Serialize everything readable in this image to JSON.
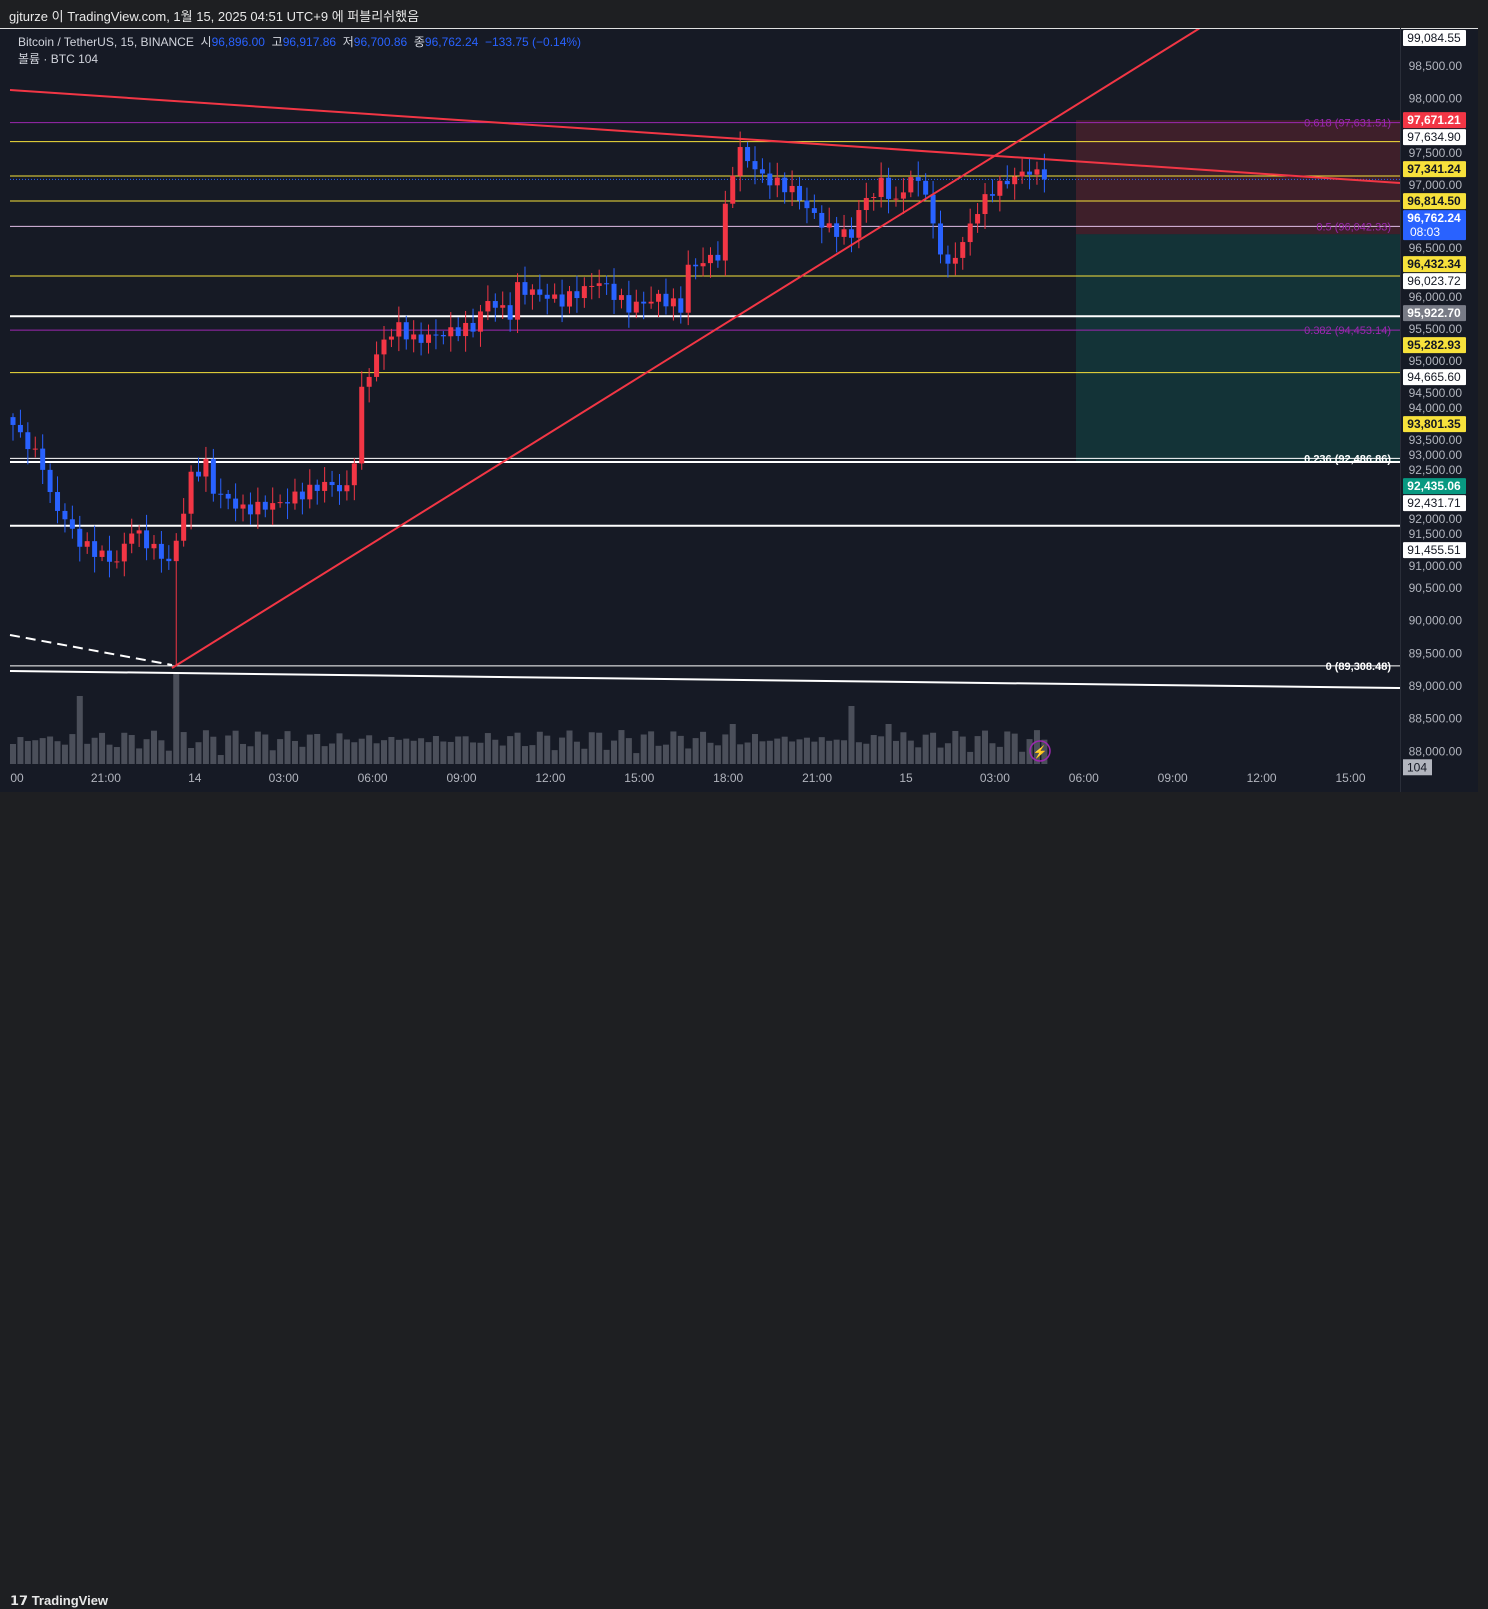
{
  "publish_line": "gjturze 이 TradingView.com, 1월 15, 2025 04:51 UTC+9 에 퍼블리쉬했음",
  "legend": {
    "symbol": "Bitcoin / TetherUS, 15, BINANCE",
    "open_label": "시",
    "open": "96,896.00",
    "high_label": "고",
    "high": "96,917.86",
    "low_label": "저",
    "low": "96,700.86",
    "close_label": "종",
    "close": "96,762.24",
    "change": "−133.75 (−0.14%)",
    "volume_line": "볼륨 · BTC  104"
  },
  "footer": {
    "brand": "TradingView"
  },
  "colors": {
    "up": "#f23645",
    "down": "#2962ff",
    "bg": "#161a25",
    "fib": "#9c27b0",
    "hline_yellow": "#f7e13b",
    "trend": "#f23645"
  },
  "chart_data": {
    "type": "candlestick",
    "title": "Bitcoin / TetherUS, 15, BINANCE",
    "ylim": [
      88000,
      99300
    ],
    "y_ticks": [
      "98,500.00",
      "98,000.00",
      "97,500.00",
      "97,000.00",
      "96,500.00",
      "96,000.00",
      "95,500.00",
      "95,000.00",
      "94,500.00",
      "94,000.00",
      "93,500.00",
      "93,000.00",
      "92,500.00",
      "92,000.00",
      "91,500.00",
      "91,000.00",
      "90,500.00",
      "90,000.00",
      "89,500.00",
      "89,000.00",
      "88,500.00",
      "88,000.00"
    ],
    "x_ticks": [
      "00",
      "21:00",
      "14",
      "03:00",
      "06:00",
      "09:00",
      "12:00",
      "15:00",
      "18:00",
      "21:00",
      "15",
      "03:00",
      "06:00",
      "09:00",
      "12:00",
      "15:00"
    ],
    "close_keypoints": [
      [
        0,
        93000
      ],
      [
        4,
        92400
      ],
      [
        5,
        91900
      ],
      [
        9,
        91200
      ],
      [
        12,
        91000
      ],
      [
        14,
        90900
      ],
      [
        16,
        91400
      ],
      [
        19,
        91100
      ],
      [
        21,
        90900
      ],
      [
        22,
        91200
      ],
      [
        23,
        91700
      ],
      [
        24,
        92200
      ],
      [
        26,
        92400
      ],
      [
        27,
        92000
      ],
      [
        31,
        91700
      ],
      [
        36,
        91800
      ],
      [
        42,
        92100
      ],
      [
        45,
        92000
      ],
      [
        46,
        92500
      ],
      [
        47,
        93500
      ],
      [
        48,
        93800
      ],
      [
        50,
        94300
      ],
      [
        52,
        94500
      ],
      [
        54,
        94300
      ],
      [
        58,
        94400
      ],
      [
        62,
        94500
      ],
      [
        64,
        94900
      ],
      [
        67,
        94700
      ],
      [
        68,
        95100
      ],
      [
        74,
        94900
      ],
      [
        79,
        95200
      ],
      [
        81,
        95000
      ],
      [
        83,
        94800
      ],
      [
        87,
        94950
      ],
      [
        90,
        94800
      ],
      [
        91,
        95400
      ],
      [
        95,
        95600
      ],
      [
        96,
        96300
      ],
      [
        97,
        96900
      ],
      [
        98,
        97200
      ],
      [
        101,
        96800
      ],
      [
        105,
        96600
      ],
      [
        108,
        96200
      ],
      [
        110,
        96000
      ],
      [
        113,
        95900
      ],
      [
        114,
        96300
      ],
      [
        117,
        96700
      ],
      [
        119,
        96400
      ],
      [
        121,
        96800
      ],
      [
        123,
        96600
      ],
      [
        124,
        96000
      ],
      [
        126,
        95400
      ],
      [
        128,
        95800
      ],
      [
        130,
        96300
      ],
      [
        132,
        96600
      ],
      [
        135,
        96800
      ],
      [
        137,
        96900
      ],
      [
        139,
        96762
      ]
    ],
    "low_wick": {
      "index": 22,
      "value": 89308.48
    },
    "volume_last": "104",
    "price_labels": [
      {
        "value": 99084.55,
        "text": "99,084.55",
        "style": "white"
      },
      {
        "value": 97671.21,
        "text": "97,671.21",
        "style": "red"
      },
      {
        "value": 97634.9,
        "text": "97,634.90",
        "style": "white"
      },
      {
        "value": 97341.24,
        "text": "97,341.24",
        "style": "yellow"
      },
      {
        "value": 96814.5,
        "text": "96,814.50",
        "style": "yellow"
      },
      {
        "value": 96762.24,
        "text": "96,762.24",
        "sub": "08:03",
        "style": "blue"
      },
      {
        "value": 96432.34,
        "text": "96,432.34",
        "style": "yellow"
      },
      {
        "value": 96023.72,
        "text": "96,023.72",
        "style": "white"
      },
      {
        "value": 95922.7,
        "text": "95,922.70",
        "style": "gray"
      },
      {
        "value": 95282.93,
        "text": "95,282.93",
        "style": "yellow"
      },
      {
        "value": 94665.6,
        "text": "94,665.60",
        "style": "white"
      },
      {
        "value": 93801.35,
        "text": "93,801.35",
        "style": "yellow"
      },
      {
        "value": 92435.06,
        "text": "92,435.06",
        "style": "green"
      },
      {
        "value": 92431.71,
        "text": "92,431.71",
        "style": "white"
      },
      {
        "value": 91455.51,
        "text": "91,455.51",
        "style": "white"
      }
    ],
    "horizontal_lines": [
      {
        "value": 97341.24,
        "color": "yellow"
      },
      {
        "value": 96814.5,
        "color": "yellow"
      },
      {
        "value": 96432.34,
        "color": "yellow"
      },
      {
        "value": 95282.93,
        "color": "yellow"
      },
      {
        "value": 93801.35,
        "color": "yellow"
      },
      {
        "value": 94665.6,
        "color": "white"
      },
      {
        "value": 92431.71,
        "color": "white"
      },
      {
        "value": 91455.51,
        "color": "white"
      }
    ],
    "fib_levels": [
      {
        "value": 97631.51,
        "text": "0.618 (97,631.51)"
      },
      {
        "value": 96042.33,
        "text": "0.5 (96,042.33)"
      },
      {
        "value": 94453.14,
        "text": "0.382 (94,453.14)"
      },
      {
        "value": 92486.86,
        "text": "0.236 (92,486.86)"
      },
      {
        "value": 89308.48,
        "text": "0 (89,308.48)"
      }
    ],
    "position": {
      "stop": 97671.21,
      "entry": 95922.7,
      "target": 92435.06
    }
  }
}
